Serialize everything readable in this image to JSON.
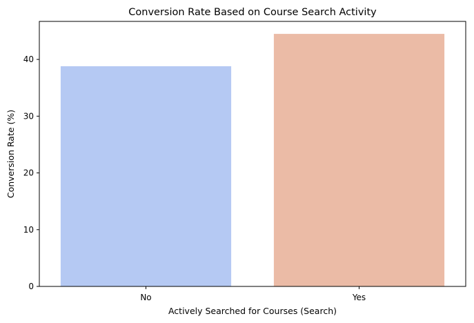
{
  "chart_data": {
    "type": "bar",
    "title": "Conversion Rate Based on Course Search Activity",
    "xlabel": "Actively Searched for Courses (Search)",
    "ylabel": "Conversion Rate (%)",
    "categories": [
      "No",
      "Yes"
    ],
    "values": [
      38.8,
      44.5
    ],
    "colors": [
      "#b5c9f3",
      "#ebbba6"
    ],
    "ylim": [
      0,
      46.7
    ],
    "yticks": [
      0,
      10,
      20,
      30,
      40
    ],
    "grid": false,
    "legend": "none"
  }
}
